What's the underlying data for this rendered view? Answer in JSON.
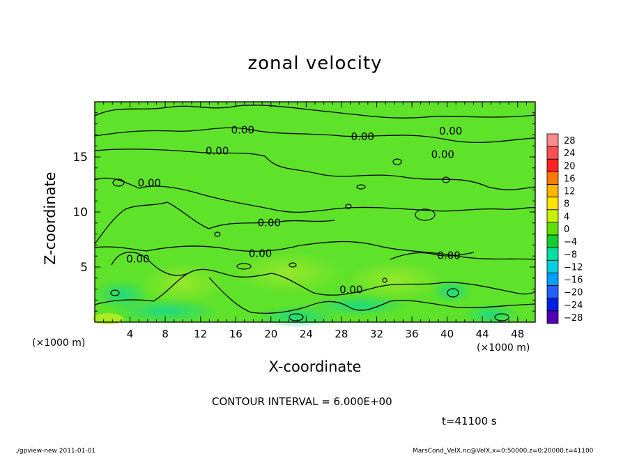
{
  "chart_data": {
    "type": "heatmap",
    "title": "zonal velocity",
    "xlabel": "X-coordinate",
    "ylabel": "Z-coordinate",
    "xlim": [
      0,
      50
    ],
    "ylim": [
      0,
      20
    ],
    "x_unit_label": "(×1000 m)",
    "x_ticks": [
      4,
      8,
      12,
      16,
      20,
      24,
      28,
      32,
      36,
      40,
      44,
      48
    ],
    "y_ticks": [
      5,
      10,
      15
    ],
    "contour_label": "0.00",
    "contour_labels_positions_data": [
      {
        "x": 16.8,
        "y": 17.4
      },
      {
        "x": 30.4,
        "y": 16.8
      },
      {
        "x": 40.4,
        "y": 17.3
      },
      {
        "x": 13.9,
        "y": 15.5
      },
      {
        "x": 39.5,
        "y": 15.2
      },
      {
        "x": 6.2,
        "y": 12.6
      },
      {
        "x": 19.8,
        "y": 9.0
      },
      {
        "x": 18.8,
        "y": 6.2
      },
      {
        "x": 40.2,
        "y": 6.0
      },
      {
        "x": 4.9,
        "y": 5.7
      },
      {
        "x": 29.1,
        "y": 2.9
      }
    ],
    "colorbar": {
      "labels": [
        "28",
        "24",
        "20",
        "16",
        "12",
        "8",
        "4",
        "0",
        "−4",
        "−8",
        "−12",
        "−16",
        "−20",
        "−24",
        "−28"
      ],
      "colors": [
        "#ff8c8c",
        "#ff5050",
        "#ff2020",
        "#ff7a00",
        "#ffb400",
        "#ffe400",
        "#c8f000",
        "#60e000",
        "#10d030",
        "#00e0a0",
        "#00d0e0",
        "#00a0ff",
        "#2060ff",
        "#0020e0",
        "#5000b0"
      ]
    },
    "field_color": "#5fe22a",
    "contour_interval_text": "CONTOUR INTERVAL = 6.000E+00"
  },
  "time_label": "t=41100 s",
  "footer_left": "./gpview-new   2011-01-01",
  "footer_right": "MarsCond_VelX.nc@VelX,x=0:50000,z=0:20000,t=41100"
}
